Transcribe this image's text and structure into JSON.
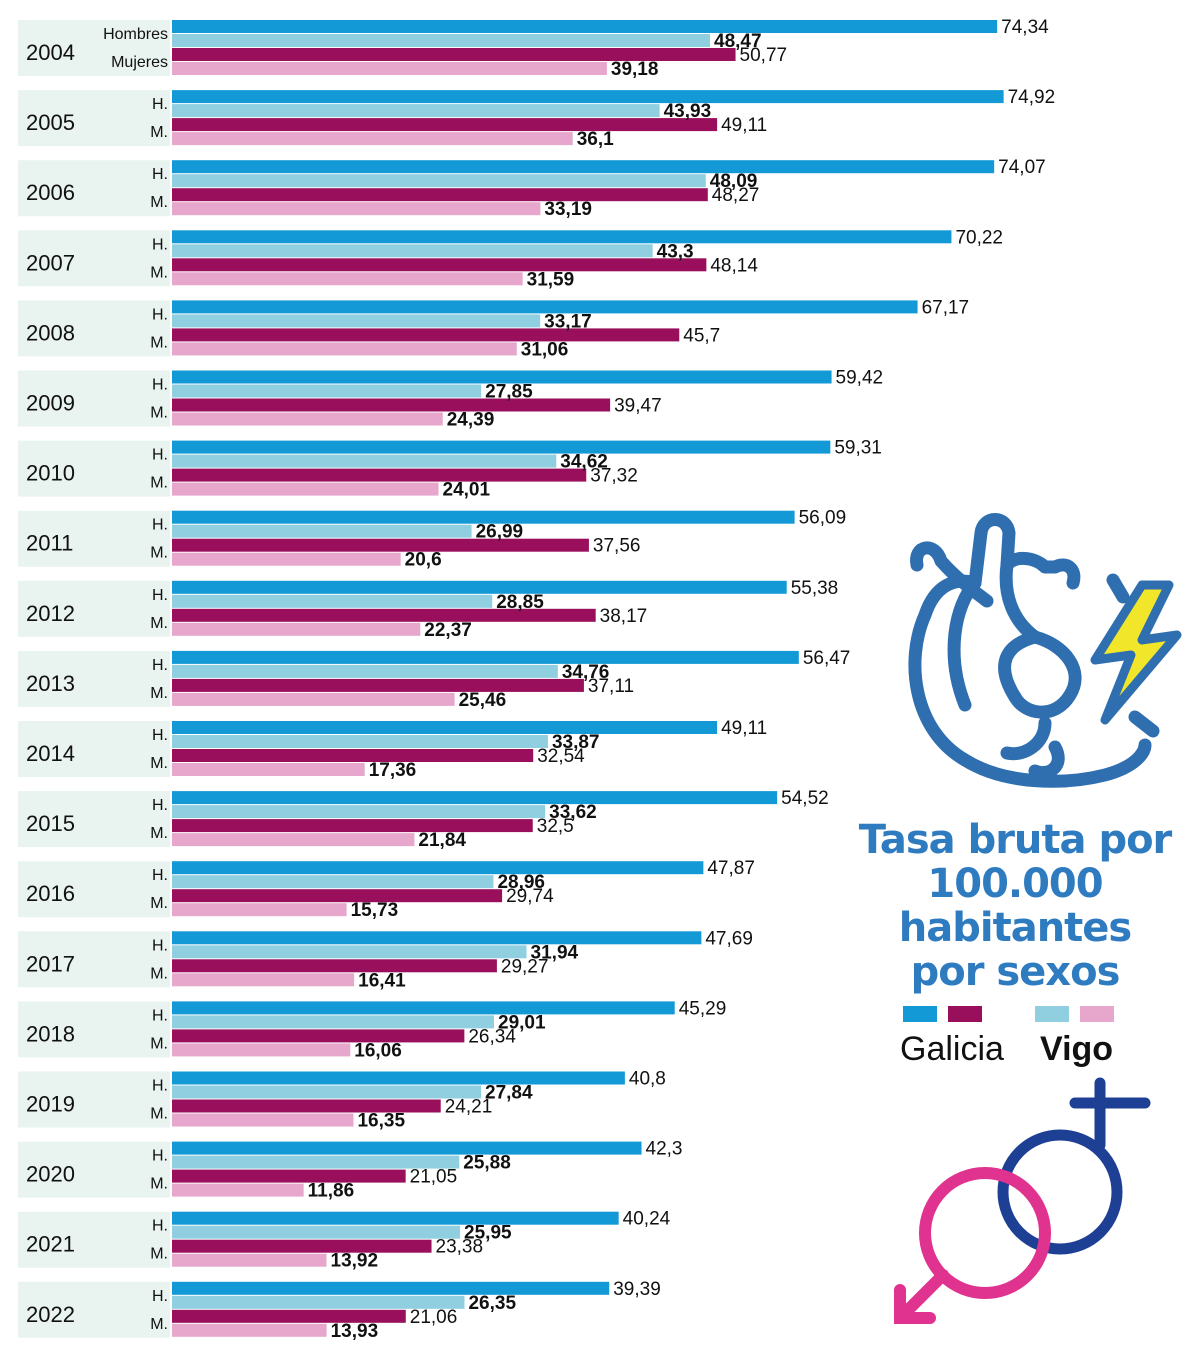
{
  "chart_data": {
    "type": "bar",
    "orientation": "horizontal",
    "title": "Tasa bruta por 100.000 habitantes por sexos",
    "categories": [
      "2004",
      "2005",
      "2006",
      "2007",
      "2008",
      "2009",
      "2010",
      "2011",
      "2012",
      "2013",
      "2014",
      "2015",
      "2016",
      "2017",
      "2018",
      "2019",
      "2020",
      "2021",
      "2022"
    ],
    "sex_labels": {
      "first_year": [
        "Hombres",
        "Mujeres"
      ],
      "other_years": [
        "H.",
        "M."
      ]
    },
    "series": [
      {
        "name": "Galicia",
        "sex": "H.",
        "color": "#139ad6",
        "values": [
          74.34,
          74.92,
          74.07,
          70.22,
          67.17,
          59.42,
          59.31,
          56.09,
          55.38,
          56.47,
          49.11,
          54.52,
          47.87,
          47.69,
          45.29,
          40.8,
          42.3,
          40.24,
          39.39
        ],
        "labels": [
          "74,34",
          "74,92",
          "74,07",
          "70,22",
          "67,17",
          "59,42",
          "59,31",
          "56,09",
          "55,38",
          "56,47",
          "49,11",
          "54,52",
          "47,87",
          "47,69",
          "45,29",
          "40,8",
          "42,3",
          "40,24",
          "39,39"
        ]
      },
      {
        "name": "Vigo",
        "sex": "H.",
        "color": "#8fcfe0",
        "values": [
          48.47,
          43.93,
          48.09,
          43.3,
          33.17,
          27.85,
          34.62,
          26.99,
          28.85,
          34.76,
          33.87,
          33.62,
          28.96,
          31.94,
          29.01,
          27.84,
          25.88,
          25.95,
          26.35
        ],
        "labels": [
          "48,47",
          "43,93",
          "48,09",
          "43,3",
          "33,17",
          "27,85",
          "34,62",
          "26,99",
          "28,85",
          "34,76",
          "33,87",
          "33,62",
          "28,96",
          "31,94",
          "29,01",
          "27,84",
          "25,88",
          "25,95",
          "26,35"
        ]
      },
      {
        "name": "Galicia",
        "sex": "M.",
        "color": "#990f5c",
        "values": [
          50.77,
          49.11,
          48.27,
          48.14,
          45.7,
          39.47,
          37.32,
          37.56,
          38.17,
          37.11,
          32.54,
          32.5,
          29.74,
          29.27,
          26.34,
          24.21,
          21.05,
          23.38,
          21.06
        ],
        "labels": [
          "50,77",
          "49,11",
          "48,27",
          "48,14",
          "45,7",
          "39,47",
          "37,32",
          "37,56",
          "38,17",
          "37,11",
          "32,54",
          "32,5",
          "29,74",
          "29,27",
          "26,34",
          "24,21",
          "21,05",
          "23,38",
          "21,06"
        ]
      },
      {
        "name": "Vigo",
        "sex": "M.",
        "color": "#e7a6cb",
        "values": [
          39.18,
          36.1,
          33.19,
          31.59,
          31.06,
          24.39,
          24.01,
          20.6,
          22.37,
          25.46,
          17.36,
          21.84,
          15.73,
          16.41,
          16.06,
          16.35,
          11.86,
          13.92,
          13.93
        ],
        "labels": [
          "39,18",
          "36,1",
          "33,19",
          "31,59",
          "31,06",
          "24,39",
          "24,01",
          "20,6",
          "22,37",
          "25,46",
          "17,36",
          "21,84",
          "15,73",
          "16,41",
          "16,06",
          "16,35",
          "11,86",
          "13,92",
          "13,93"
        ]
      }
    ],
    "legend": {
      "position": "right",
      "items": [
        "Galicia",
        "Vigo"
      ]
    },
    "grid": false
  },
  "legend": {
    "title_lines": [
      "Tasa bruta por",
      "100.000",
      "habitantes",
      "por sexos"
    ],
    "galicia_label": "Galicia",
    "vigo_label": "Vigo",
    "swatch_colors": [
      "#139ad6",
      "#990f5c",
      "#8fcfe0",
      "#e7a6cb"
    ]
  },
  "colors": {
    "year_band": "#e9f3ef",
    "title": "#2f7bc0",
    "heart_outline": "#2f6fb0",
    "lightning": "#f2e62b",
    "female_symbol": "#e0338f",
    "male_symbol": "#1d3f94"
  },
  "icons": [
    "heart-icon",
    "lightning-icon",
    "female-symbol-icon",
    "male-symbol-icon"
  ]
}
